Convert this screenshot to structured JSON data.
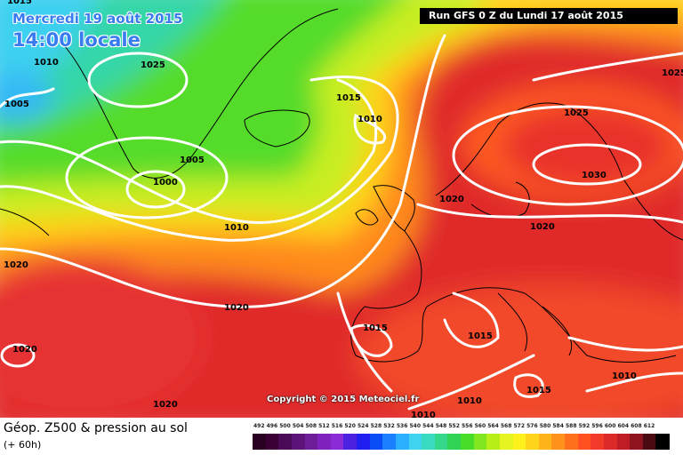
{
  "header": {
    "date": "Mercredi 19 août 2015",
    "time": "14:00 locale",
    "run": "Run GFS 0 Z du Lundi 17 août 2015"
  },
  "copyright": "Copyright © 2015 Meteociel.fr",
  "legend": {
    "title": "Géop. Z500 & pression au sol",
    "subtitle": "(+ 60h)",
    "scale": [
      {
        "label": "492",
        "color": "#2a0022"
      },
      {
        "label": "496",
        "color": "#3a0036"
      },
      {
        "label": "500",
        "color": "#4b0a57"
      },
      {
        "label": "504",
        "color": "#5c1478"
      },
      {
        "label": "508",
        "color": "#6e1d99"
      },
      {
        "label": "512",
        "color": "#7f22bd"
      },
      {
        "label": "516",
        "color": "#8b2ad6"
      },
      {
        "label": "520",
        "color": "#4a22e0"
      },
      {
        "label": "524",
        "color": "#1f20f0"
      },
      {
        "label": "528",
        "color": "#0a4cf5"
      },
      {
        "label": "532",
        "color": "#1a80ff"
      },
      {
        "label": "536",
        "color": "#2ab0ff"
      },
      {
        "label": "540",
        "color": "#3fd3f0"
      },
      {
        "label": "544",
        "color": "#39dcc0"
      },
      {
        "label": "548",
        "color": "#35d88a"
      },
      {
        "label": "552",
        "color": "#2fd455"
      },
      {
        "label": "556",
        "color": "#45dc2a"
      },
      {
        "label": "560",
        "color": "#80e61e"
      },
      {
        "label": "564",
        "color": "#b8ee18"
      },
      {
        "label": "568",
        "color": "#e6f522"
      },
      {
        "label": "572",
        "color": "#fff21c"
      },
      {
        "label": "576",
        "color": "#ffd41a"
      },
      {
        "label": "580",
        "color": "#ffb41a"
      },
      {
        "label": "584",
        "color": "#ff921a"
      },
      {
        "label": "588",
        "color": "#ff701c"
      },
      {
        "label": "592",
        "color": "#ff5022"
      },
      {
        "label": "596",
        "color": "#f23a2a"
      },
      {
        "label": "600",
        "color": "#dc2a2a"
      },
      {
        "label": "604",
        "color": "#c01c26"
      },
      {
        "label": "608",
        "color": "#8e1420"
      },
      {
        "label": "612",
        "color": "#4a0a12"
      },
      {
        "label": "",
        "color": "#000000"
      }
    ]
  },
  "isobars": [
    {
      "value": "1015",
      "where": "top-left"
    },
    {
      "value": "1010",
      "where": "top-left"
    },
    {
      "value": "1005",
      "where": "west"
    },
    {
      "value": "1025",
      "where": "greenland"
    },
    {
      "value": "1005",
      "where": "greenland-south"
    },
    {
      "value": "1000",
      "where": "low-center"
    },
    {
      "value": "1010",
      "where": "atlantic"
    },
    {
      "value": "1015",
      "where": "north-atlantic"
    },
    {
      "value": "1010",
      "where": "iceland"
    },
    {
      "value": "1020",
      "where": "west-edge"
    },
    {
      "value": "1020",
      "where": "atlantic-south"
    },
    {
      "value": "1020",
      "where": "azores"
    },
    {
      "value": "1020",
      "where": "bottom-left"
    },
    {
      "value": "1015",
      "where": "iberia"
    },
    {
      "value": "1015",
      "where": "mediterranean"
    },
    {
      "value": "1020",
      "where": "north-sea"
    },
    {
      "value": "1025",
      "where": "scandinavia"
    },
    {
      "value": "1030",
      "where": "high-center"
    },
    {
      "value": "1020",
      "where": "central-europe"
    },
    {
      "value": "1025",
      "where": "top-right"
    },
    {
      "value": "1010",
      "where": "east-med"
    },
    {
      "value": "1015",
      "where": "north-africa"
    },
    {
      "value": "1010",
      "where": "bottom-center"
    },
    {
      "value": "1010",
      "where": "south"
    }
  ]
}
